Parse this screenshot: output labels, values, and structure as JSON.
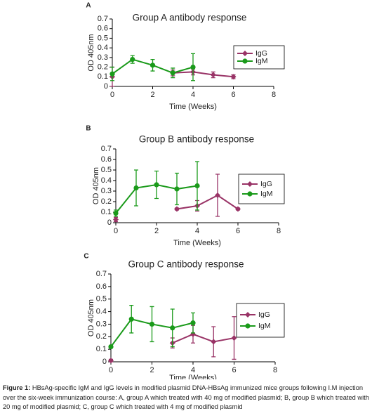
{
  "charts_label": "Figure 1:",
  "caption": "HBsAg-specific IgM and IgG levels in modified plasmid DNA-HBsAg immunized mice groups following I.M injection over the six-week immunization course: A, group A which treated with 40 mg of modified plasmid; B, group B which treated with 20 mg of modified plasmid; C, group C which treated with 4 mg of modified plasmid",
  "chart_data": [
    {
      "type": "line",
      "panel": "A",
      "title": "Group A antibody response",
      "x_label": "Time (Weeks)",
      "y_label": "OD 405nm",
      "xlim": [
        0,
        8
      ],
      "xticks": [
        0,
        2,
        4,
        6,
        8
      ],
      "ylim": [
        0,
        0.7
      ],
      "yticks": [
        0,
        0.1,
        0.2,
        0.3,
        0.4,
        0.5,
        0.6,
        0.7
      ],
      "series": [
        {
          "name": "IgG",
          "color": "#993366",
          "marker": "diamond",
          "x": [
            0,
            1,
            2,
            3,
            4,
            5,
            6
          ],
          "values": [
            0.1,
            null,
            null,
            0.14,
            0.15,
            0.12,
            0.1
          ],
          "errors": [
            0.1,
            null,
            null,
            0.03,
            0.03,
            0.03,
            0.02
          ]
        },
        {
          "name": "IgM",
          "color": "#1a9a1a",
          "marker": "circle",
          "x": [
            0,
            1,
            2,
            3,
            4
          ],
          "values": [
            0.13,
            0.28,
            0.22,
            0.14,
            0.2
          ],
          "errors": [
            0.07,
            0.04,
            0.06,
            0.05,
            0.14
          ]
        }
      ]
    },
    {
      "type": "line",
      "panel": "B",
      "title": "Group B antibody response",
      "x_label": "Time (Weeks)",
      "y_label": "OD 405nm",
      "xlim": [
        0,
        8
      ],
      "xticks": [
        0,
        2,
        4,
        6,
        8
      ],
      "ylim": [
        0,
        0.7
      ],
      "yticks": [
        0,
        0.1,
        0.2,
        0.3,
        0.4,
        0.5,
        0.6,
        0.7
      ],
      "series": [
        {
          "name": "IgG",
          "color": "#993366",
          "marker": "diamond",
          "x": [
            0,
            1,
            2,
            3,
            4,
            5,
            6
          ],
          "values": [
            0.03,
            null,
            null,
            0.13,
            0.16,
            0.26,
            0.13
          ],
          "errors": [
            0.02,
            null,
            null,
            0.01,
            0.05,
            0.2,
            0.01
          ]
        },
        {
          "name": "IgM",
          "color": "#1a9a1a",
          "marker": "circle",
          "x": [
            0,
            1,
            2,
            3,
            4
          ],
          "values": [
            0.09,
            0.33,
            0.36,
            0.32,
            0.35
          ],
          "errors": [
            0.03,
            0.17,
            0.13,
            0.15,
            0.23
          ]
        }
      ]
    },
    {
      "type": "line",
      "panel": "C",
      "title": "Group C antibody response",
      "x_label": "Time (Weeks)",
      "y_label": "OD 405nm",
      "xlim": [
        0,
        8
      ],
      "xticks": [
        0,
        2,
        4,
        6,
        8
      ],
      "ylim": [
        0,
        0.7
      ],
      "yticks": [
        0,
        0.1,
        0.2,
        0.3,
        0.4,
        0.5,
        0.6,
        0.7
      ],
      "series": [
        {
          "name": "IgG",
          "color": "#993366",
          "marker": "diamond",
          "x": [
            0,
            1,
            2,
            3,
            4,
            5,
            6
          ],
          "values": [
            0.01,
            null,
            null,
            0.15,
            0.22,
            0.16,
            0.19
          ],
          "errors": [
            0.01,
            null,
            null,
            0.04,
            0.07,
            0.12,
            0.17
          ]
        },
        {
          "name": "IgM",
          "color": "#1a9a1a",
          "marker": "circle",
          "x": [
            0,
            1,
            2,
            3,
            4
          ],
          "values": [
            0.12,
            0.34,
            0.3,
            0.27,
            0.31
          ],
          "errors": [
            0.01,
            0.11,
            0.14,
            0.15,
            0.08
          ]
        }
      ]
    }
  ]
}
